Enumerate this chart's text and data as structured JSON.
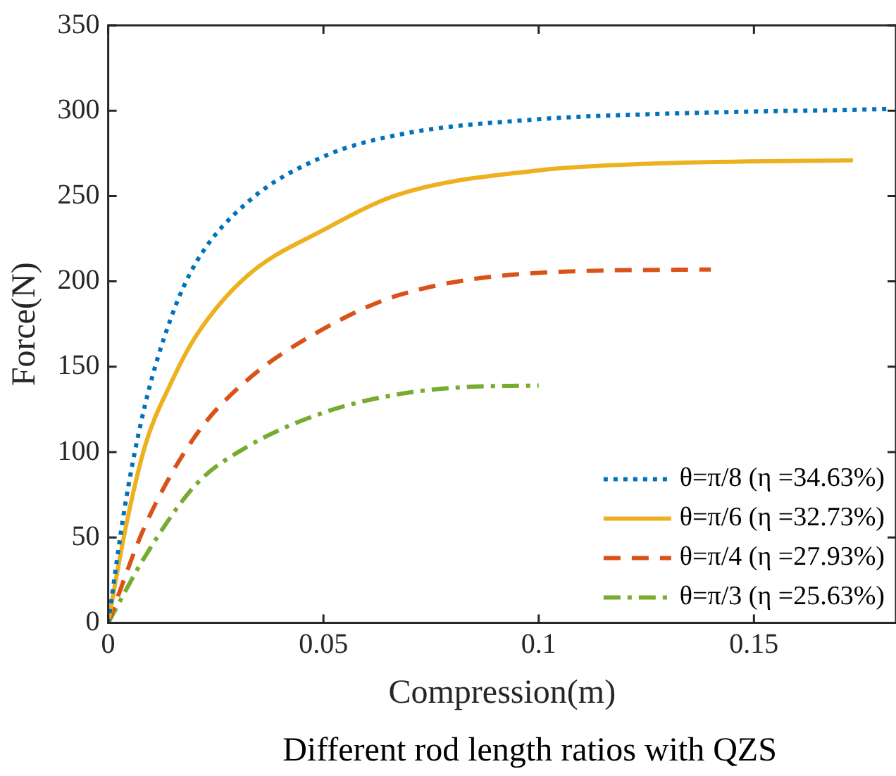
{
  "chart_data": {
    "type": "line",
    "xlabel": "Compression(m)",
    "ylabel": "Force(N)",
    "xlim": [
      0,
      0.183
    ],
    "xticks": [
      0,
      0.05,
      0.1,
      0.15
    ],
    "ylim": [
      0,
      350
    ],
    "yticks": [
      0,
      50,
      100,
      150,
      200,
      250,
      300,
      350
    ],
    "grid": false,
    "legend": "bottom right",
    "marker": "none",
    "annotations": [
      "Different rod length ratios with QZS"
    ],
    "series": [
      {
        "name": "θ=π/8 (η =34.63%)",
        "color": "#0072bd",
        "line_style": "dotted",
        "x": [
          0,
          0.004,
          0.0086,
          0.0145,
          0.0204,
          0.0322,
          0.0499,
          0.0676,
          0.1,
          0.1265,
          0.182
        ],
        "values": [
          0,
          70,
          128,
          178,
          211,
          246,
          273,
          286,
          295,
          298,
          301
        ]
      },
      {
        "name": "θ=π/6 (η =32.73%)",
        "color": "#edb120",
        "line_style": "solid",
        "x": [
          0,
          0.004,
          0.0086,
          0.0145,
          0.0204,
          0.0322,
          0.0499,
          0.0676,
          0.1,
          0.1265,
          0.173
        ],
        "values": [
          0,
          55,
          104,
          140,
          168,
          203,
          230,
          251,
          265,
          269,
          271
        ]
      },
      {
        "name": "θ=π/4 (η =27.93%)",
        "color": "#d95319",
        "line_style": "dashed",
        "x": [
          0,
          0.0086,
          0.0204,
          0.0322,
          0.0499,
          0.0676,
          0.1,
          0.14
        ],
        "values": [
          0,
          57,
          110,
          142,
          172,
          192,
          205,
          207
        ]
      },
      {
        "name": "θ=π/3 (η =25.63%)",
        "color": "#77ac30",
        "line_style": "dashdot",
        "x": [
          0,
          0.0086,
          0.0204,
          0.0322,
          0.0499,
          0.0676,
          0.0825,
          0.1
        ],
        "values": [
          0,
          39,
          81,
          103,
          123,
          134,
          138,
          139
        ]
      }
    ]
  }
}
